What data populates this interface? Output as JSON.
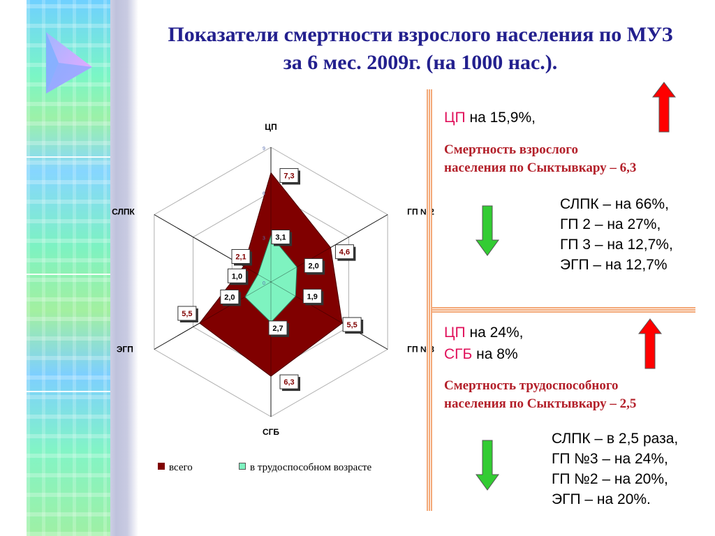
{
  "title": {
    "line1": "Показатели смертности взрослого населения по МУЗ",
    "line2": "за 6 мес. 2009г. (на 1000 нас.)."
  },
  "top_section": {
    "cp_name": "ЦП",
    "cp_change": " на 15,9%,",
    "note_line1": "Смертность взрослого",
    "note_line2": "населения по Сыктывкару – 6,3",
    "decreases": [
      "СЛПК – на 66%,",
      "ГП 2 – на 27%,",
      "ГП 3 – на 12,7%,",
      "ЭГП – на 12,7%"
    ]
  },
  "bottom_section": {
    "cp_name": "ЦП",
    "cp_change": " на 24%,",
    "sgb_name": "СГБ",
    "sgb_change": " на 8%",
    "note_line1": "Смертность трудоспособного",
    "note_line2": "населения по Сыктывкару – 2,5",
    "decreases": [
      "СЛПК – в 2,5 раза,",
      "ГП №3 – на 24%,",
      "ГП №2 – на 20%,",
      "ЭГП – на 20%."
    ]
  },
  "icons": [
    "triangle-logo-icon",
    "arrow-up-icon",
    "arrow-down-icon"
  ],
  "colors": {
    "title": "#23208e",
    "accent_pink": "#e0105a",
    "note_red": "#b3202a",
    "series_total": "#800000",
    "series_working": "#7ef3c0",
    "arrow_up": "#ff0000",
    "arrow_down": "#33cc33",
    "divider": "#f3a877"
  },
  "chart_data": {
    "type": "radar",
    "categories": [
      "ЦП",
      "ГП №2",
      "ГП №3",
      "СГБ",
      "ЭГП",
      "СЛПК"
    ],
    "rlim": [
      0,
      9
    ],
    "ticks": [
      "0",
      "3",
      "6",
      "9"
    ],
    "grid": true,
    "legend_position": "bottom",
    "series": [
      {
        "name": "всего",
        "values": [
          7.3,
          4.6,
          5.5,
          6.3,
          5.5,
          2.1
        ],
        "labels": [
          "7,3",
          "4,6",
          "5,5",
          "6,3",
          "5,5",
          "2,1"
        ]
      },
      {
        "name": "в трудоспособном возрасте",
        "values": [
          3.1,
          2.0,
          1.9,
          2.7,
          2.0,
          1.0
        ],
        "labels": [
          "3,1",
          "2,0",
          "1,9",
          "2,7",
          "2,0",
          "1,0"
        ]
      }
    ]
  }
}
